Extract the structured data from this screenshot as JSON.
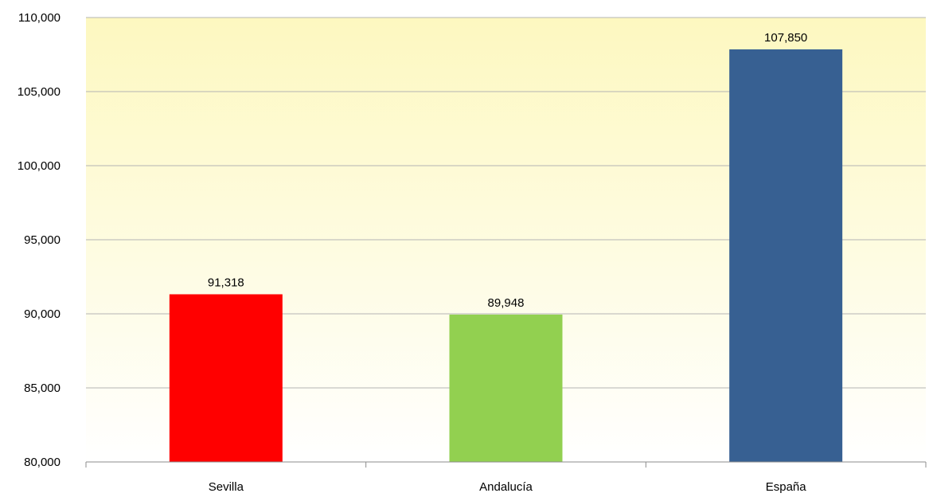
{
  "chart_data": {
    "type": "bar",
    "title": "",
    "xlabel": "",
    "ylabel": "",
    "categories": [
      "Sevilla",
      "Andalucía",
      "España"
    ],
    "values": [
      91318,
      89948,
      107850
    ],
    "value_labels": [
      "91,318",
      "89,948",
      "107,850"
    ],
    "bar_colors": [
      "#ff0000",
      "#92d050",
      "#376092"
    ],
    "ylim": [
      80000,
      110000
    ],
    "yticks": [
      80000,
      85000,
      90000,
      95000,
      100000,
      105000,
      110000
    ],
    "ytick_labels": [
      "80,000",
      "85,000",
      "90,000",
      "95,000",
      "100,000",
      "105,000",
      "110,000"
    ],
    "grid": true,
    "legend": "none",
    "background_gradient": [
      "#fdf8c0",
      "#ffffff"
    ]
  }
}
